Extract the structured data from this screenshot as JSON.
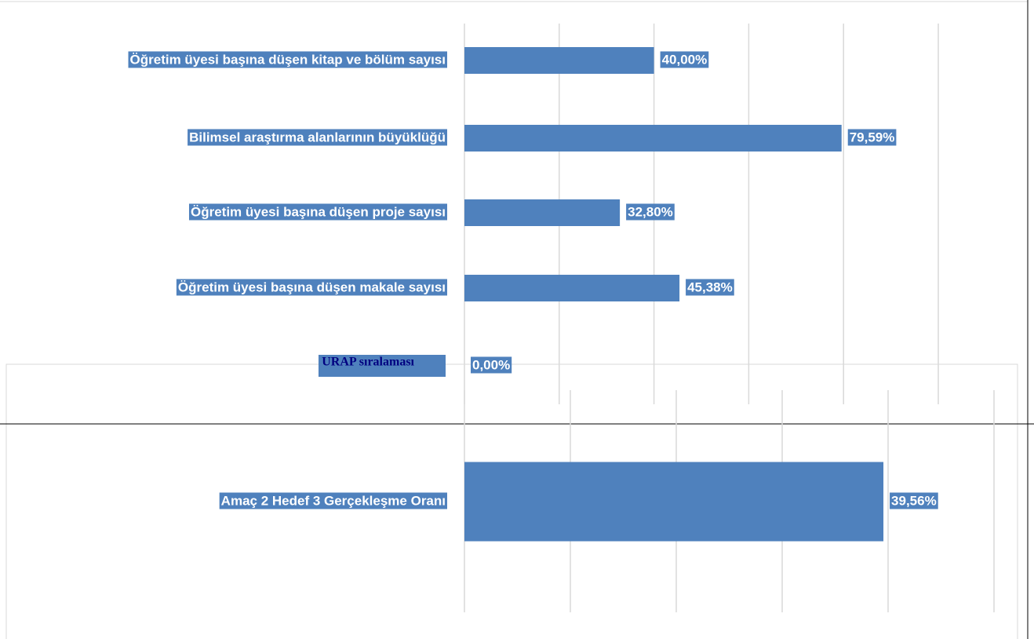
{
  "chart_data": [
    {
      "type": "bar",
      "categories": [
        "Öğretim üyesi başına düşen kitap ve bölüm sayısı",
        "Bilimsel araştırma alanlarının büyüklüğü",
        "Öğretim üyesi başına düşen proje sayısı",
        "Öğretim üyesi başına düşen makale sayısı",
        "URAP sıralaması"
      ],
      "values": [
        40,
        79.59,
        32.8,
        45.38,
        0
      ],
      "value_labels": [
        "40,00%",
        "79,59%",
        "32,80%",
        "45,38%",
        "0,00%"
      ],
      "color": "#4f81bd",
      "xlim": [
        0,
        100
      ],
      "xticks": [
        0,
        20,
        40,
        60,
        80,
        100
      ],
      "grid": true
    },
    {
      "type": "bar",
      "categories": [
        "Amaç 2 Hedef 3 Gerçekleşme Oranı"
      ],
      "values": [
        39.56
      ],
      "value_labels": [
        "39,56%"
      ],
      "color": "#4f81bd",
      "xlim": [
        0,
        50
      ],
      "xticks": [
        0,
        10,
        20,
        30,
        40,
        50
      ],
      "grid": true
    }
  ]
}
